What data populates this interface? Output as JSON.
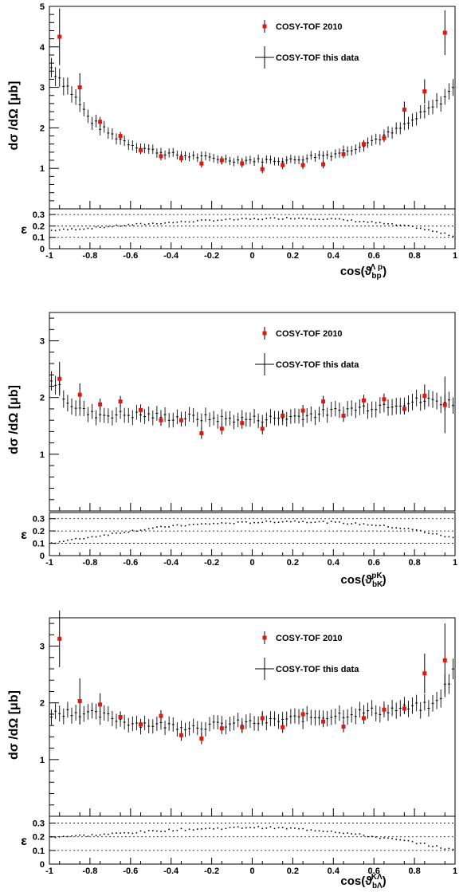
{
  "chart_data": [
    {
      "type": "scatter",
      "ylabel": "dσ /dΩ [μb]",
      "xlabel_base": "cos(ϑ",
      "xlabel_sub": "bp",
      "xlabel_sup": "Λ p",
      "xlim": [
        -1,
        1
      ],
      "ylim": [
        0,
        5
      ],
      "yticks": [
        "1",
        "2",
        "3",
        "4",
        "5"
      ],
      "xticks": [
        "-1",
        "-0.8",
        "-0.6",
        "-0.4",
        "-0.2",
        "0",
        "0.2",
        "0.4",
        "0.6",
        "0.8",
        "1"
      ],
      "eff_label": "ε",
      "eff_ticks": [
        "0",
        "0.1",
        "0.2",
        "0.3"
      ],
      "eff_ylim": [
        0,
        0.35
      ],
      "legend": [
        "COSY-TOF 2010",
        "COSY-TOF this data"
      ],
      "series_2010": {
        "x": [
          -0.95,
          -0.85,
          -0.75,
          -0.65,
          -0.55,
          -0.45,
          -0.35,
          -0.25,
          -0.15,
          -0.05,
          0.05,
          0.15,
          0.25,
          0.35,
          0.45,
          0.55,
          0.65,
          0.75,
          0.85,
          0.95
        ],
        "y": [
          4.25,
          3.0,
          2.15,
          1.8,
          1.45,
          1.3,
          1.25,
          1.12,
          1.2,
          1.12,
          0.98,
          1.08,
          1.08,
          1.1,
          1.35,
          1.6,
          1.75,
          2.45,
          2.9,
          4.35
        ],
        "err": [
          0.7,
          0.35,
          0.12,
          0.1,
          0.1,
          0.1,
          0.1,
          0.1,
          0.1,
          0.1,
          0.1,
          0.1,
          0.1,
          0.1,
          0.1,
          0.1,
          0.1,
          0.2,
          0.3,
          0.55
        ]
      },
      "curve": {
        "x": [
          -1,
          -0.9,
          -0.8,
          -0.7,
          -0.6,
          -0.5,
          -0.4,
          -0.3,
          -0.2,
          -0.1,
          0,
          0.1,
          0.2,
          0.3,
          0.4,
          0.5,
          0.6,
          0.7,
          0.8,
          0.9,
          1
        ],
        "y": [
          3.55,
          2.95,
          2.2,
          1.85,
          1.6,
          1.45,
          1.35,
          1.3,
          1.25,
          1.2,
          1.2,
          1.2,
          1.2,
          1.3,
          1.35,
          1.5,
          1.7,
          1.9,
          2.2,
          2.55,
          3.0
        ]
      },
      "eff_curve": {
        "x": [
          -1,
          -0.8,
          -0.6,
          -0.4,
          -0.2,
          0,
          0.2,
          0.4,
          0.6,
          0.8,
          1
        ],
        "y": [
          0.16,
          0.18,
          0.21,
          0.23,
          0.25,
          0.26,
          0.27,
          0.26,
          0.23,
          0.19,
          0.11
        ]
      }
    },
    {
      "type": "scatter",
      "ylabel": "dσ /dΩ [μb]",
      "xlabel_base": "cos(ϑ",
      "xlabel_sub": "bK",
      "xlabel_sup": "pK",
      "xlim": [
        -1,
        1
      ],
      "ylim": [
        0,
        3.5
      ],
      "yticks": [
        "1",
        "2",
        "3"
      ],
      "xticks": [
        "-1",
        "-0.8",
        "-0.6",
        "-0.4",
        "-0.2",
        "0",
        "0.2",
        "0.4",
        "0.6",
        "0.8",
        "1"
      ],
      "eff_label": "ε",
      "eff_ticks": [
        "0",
        "0.1",
        "0.2",
        "0.3"
      ],
      "eff_ylim": [
        0,
        0.35
      ],
      "legend": [
        "COSY-TOF 2010",
        "COSY-TOF this data"
      ],
      "series_2010": {
        "x": [
          -0.95,
          -0.85,
          -0.75,
          -0.65,
          -0.55,
          -0.45,
          -0.35,
          -0.25,
          -0.15,
          -0.05,
          0.05,
          0.15,
          0.25,
          0.35,
          0.45,
          0.55,
          0.65,
          0.75,
          0.85,
          0.95
        ],
        "y": [
          2.33,
          2.05,
          1.88,
          1.93,
          1.78,
          1.6,
          1.6,
          1.37,
          1.45,
          1.55,
          1.45,
          1.68,
          1.77,
          1.93,
          1.68,
          1.95,
          1.97,
          1.8,
          2.03,
          1.87
        ],
        "err": [
          0.3,
          0.2,
          0.1,
          0.1,
          0.1,
          0.1,
          0.1,
          0.1,
          0.1,
          0.1,
          0.1,
          0.1,
          0.1,
          0.1,
          0.1,
          0.1,
          0.1,
          0.1,
          0.2,
          0.5
        ]
      },
      "curve": {
        "x": [
          -1,
          -0.9,
          -0.8,
          -0.7,
          -0.6,
          -0.5,
          -0.4,
          -0.3,
          -0.2,
          -0.1,
          0,
          0.1,
          0.2,
          0.3,
          0.4,
          0.5,
          0.6,
          0.7,
          0.8,
          0.9,
          1
        ],
        "y": [
          2.4,
          1.9,
          1.7,
          1.7,
          1.7,
          1.68,
          1.65,
          1.65,
          1.63,
          1.62,
          1.62,
          1.63,
          1.66,
          1.7,
          1.75,
          1.8,
          1.85,
          1.9,
          1.93,
          1.95,
          1.9
        ]
      },
      "eff_curve": {
        "x": [
          -1,
          -0.8,
          -0.6,
          -0.4,
          -0.2,
          0,
          0.2,
          0.4,
          0.6,
          0.8,
          1
        ],
        "y": [
          0.1,
          0.15,
          0.2,
          0.24,
          0.26,
          0.27,
          0.28,
          0.27,
          0.25,
          0.21,
          0.14
        ]
      }
    },
    {
      "type": "scatter",
      "ylabel": "dσ /dΩ [μb]",
      "xlabel_base": "cos(ϑ",
      "xlabel_sub": "bΛ",
      "xlabel_sup": "KΛ",
      "xlim": [
        -1,
        1
      ],
      "ylim": [
        0,
        3.5
      ],
      "yticks": [
        "1",
        "2",
        "3"
      ],
      "xticks": [
        "-1",
        "-0.8",
        "-0.6",
        "-0.4",
        "-0.2",
        "0",
        "0.2",
        "0.4",
        "0.6",
        "0.8",
        "1"
      ],
      "eff_label": "ε",
      "eff_ticks": [
        "0",
        "0.1",
        "0.2",
        "0.3"
      ],
      "eff_ylim": [
        0,
        0.35
      ],
      "legend": [
        "COSY-TOF 2010",
        "COSY-TOF this data"
      ],
      "series_2010": {
        "x": [
          -0.95,
          -0.85,
          -0.75,
          -0.65,
          -0.55,
          -0.45,
          -0.35,
          -0.25,
          -0.15,
          -0.05,
          0.05,
          0.15,
          0.25,
          0.35,
          0.45,
          0.55,
          0.65,
          0.75,
          0.85,
          0.95
        ],
        "y": [
          3.13,
          2.03,
          1.97,
          1.75,
          1.62,
          1.77,
          1.43,
          1.37,
          1.55,
          1.57,
          1.73,
          1.57,
          1.8,
          1.67,
          1.58,
          1.73,
          1.88,
          1.9,
          2.52,
          2.75
        ],
        "err": [
          0.5,
          0.4,
          0.2,
          0.1,
          0.1,
          0.1,
          0.1,
          0.1,
          0.1,
          0.1,
          0.1,
          0.1,
          0.1,
          0.1,
          0.1,
          0.1,
          0.1,
          0.1,
          0.35,
          0.65
        ]
      },
      "curve": {
        "x": [
          -1,
          -0.9,
          -0.8,
          -0.7,
          -0.6,
          -0.5,
          -0.4,
          -0.3,
          -0.2,
          -0.1,
          0,
          0.1,
          0.2,
          0.3,
          0.4,
          0.5,
          0.6,
          0.7,
          0.8,
          0.9,
          1
        ],
        "y": [
          1.8,
          1.85,
          1.8,
          1.75,
          1.65,
          1.62,
          1.6,
          1.58,
          1.6,
          1.63,
          1.65,
          1.68,
          1.72,
          1.75,
          1.78,
          1.82,
          1.85,
          1.88,
          1.92,
          1.95,
          2.6
        ]
      },
      "eff_curve": {
        "x": [
          -1,
          -0.8,
          -0.6,
          -0.4,
          -0.2,
          0,
          0.2,
          0.4,
          0.6,
          0.8,
          1
        ],
        "y": [
          0.2,
          0.21,
          0.23,
          0.25,
          0.26,
          0.27,
          0.26,
          0.24,
          0.2,
          0.16,
          0.1
        ]
      }
    }
  ]
}
